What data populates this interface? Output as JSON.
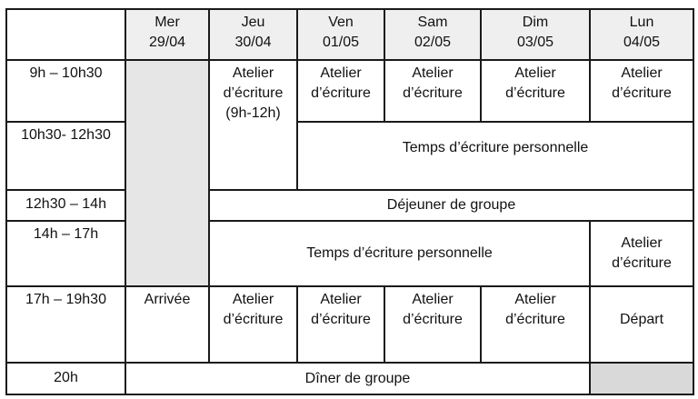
{
  "headers": [
    {
      "day": "Mer",
      "date": "29/04"
    },
    {
      "day": "Jeu",
      "date": "30/04"
    },
    {
      "day": "Ven",
      "date": "01/05"
    },
    {
      "day": "Sam",
      "date": "02/05"
    },
    {
      "day": "Dim",
      "date": "03/05"
    },
    {
      "day": "Lun",
      "date": "04/05"
    }
  ],
  "times": [
    "9h – 10h30",
    "10h30- 12h30",
    "12h30 – 14h",
    "14h – 17h",
    "17h – 19h30",
    "20h"
  ],
  "events": {
    "atelier_l1": "Atelier",
    "atelier_l2": "d’écriture",
    "jeu_hours": "(9h-12h)",
    "temps_perso": "Temps d’écriture personnelle",
    "dejeuner": "Déjeuner de groupe",
    "arrivee": "Arrivée",
    "depart": "Départ",
    "diner": "Dîner de groupe"
  },
  "colors": {
    "header_bg": "#efefef",
    "unavailable": "#e6e6e6",
    "unavailable_dark": "#d9d9d9"
  }
}
